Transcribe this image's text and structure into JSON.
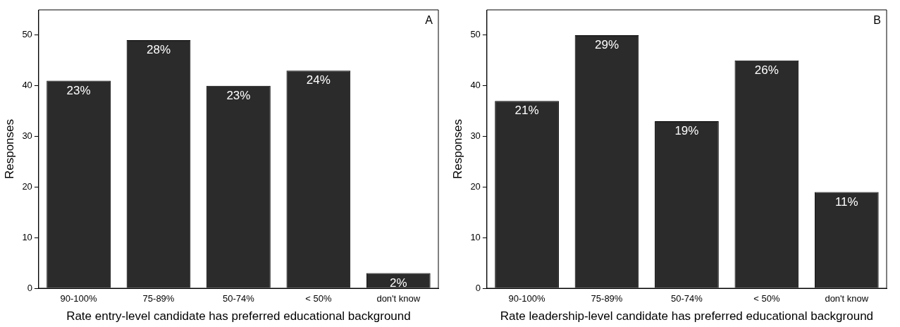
{
  "chart_data": [
    {
      "type": "bar",
      "categories": [
        "90-100%",
        "75-89%",
        "50-74%",
        "< 50%",
        "don't know"
      ],
      "values": [
        41,
        49,
        40,
        43,
        3
      ],
      "color": "#2b2b2b",
      "ylim": [
        0,
        55
      ],
      "yticks": [
        0,
        10,
        20,
        30,
        40,
        50
      ],
      "ylabel": "Responses",
      "xlabel": "Rate entry-level candidate has preferred educational background",
      "grid": false,
      "legend": false,
      "annotations": [
        "A",
        {
          "text": "23%",
          "x": "90-100%",
          "y": 41
        },
        {
          "text": "28%",
          "x": "75-89%",
          "y": 49
        },
        {
          "text": "23%",
          "x": "50-74%",
          "y": 40
        },
        {
          "text": "24%",
          "x": "< 50%",
          "y": 43
        },
        {
          "text": "2%",
          "x": "don't know",
          "y": 3
        }
      ]
    },
    {
      "type": "bar",
      "categories": [
        "90-100%",
        "75-89%",
        "50-74%",
        "< 50%",
        "don't know"
      ],
      "values": [
        37,
        50,
        33,
        45,
        19
      ],
      "color": "#2b2b2b",
      "ylim": [
        0,
        55
      ],
      "yticks": [
        0,
        10,
        20,
        30,
        40,
        50
      ],
      "ylabel": "Responses",
      "xlabel": "Rate leadership-level candidate has preferred educational background",
      "grid": false,
      "legend": false,
      "annotations": [
        "B",
        {
          "text": "21%",
          "x": "90-100%",
          "y": 37
        },
        {
          "text": "29%",
          "x": "75-89%",
          "y": 50
        },
        {
          "text": "19%",
          "x": "50-74%",
          "y": 33
        },
        {
          "text": "26%",
          "x": "< 50%",
          "y": 45
        },
        {
          "text": "11%",
          "x": "don't know",
          "y": 19
        }
      ]
    }
  ]
}
